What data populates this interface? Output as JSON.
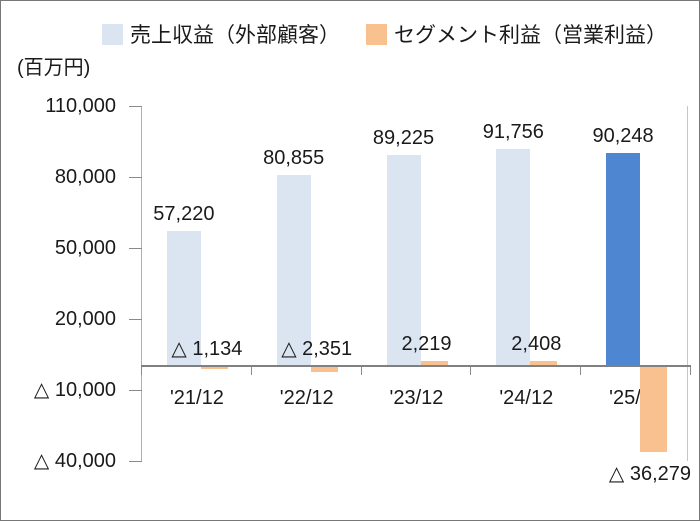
{
  "chart_data": {
    "type": "bar",
    "unit_label": "（百万円）",
    "unit_label_display": "(百万円)",
    "negative_sign": "△ ",
    "categories": [
      "'21/12",
      "'22/12",
      "'23/12",
      "'24/12",
      "'25/12"
    ],
    "series": [
      {
        "name": "売上収益（外部顧客）",
        "values": [
          57220,
          80855,
          89225,
          91756,
          90248
        ],
        "color": "#dbe5f1",
        "highlight": {
          "index": 4,
          "color": "#4e86d1"
        }
      },
      {
        "name": "セグメント利益（営業利益）",
        "values": [
          -1134,
          -2351,
          2219,
          2408,
          -36279
        ],
        "color": "#f9c18f"
      }
    ],
    "y_axis": {
      "tick_values": [
        110000,
        80000,
        50000,
        20000,
        -10000,
        -40000
      ],
      "max": 110000,
      "min": -40000
    },
    "grid": false,
    "legend_position": "top",
    "data_labels": true
  }
}
